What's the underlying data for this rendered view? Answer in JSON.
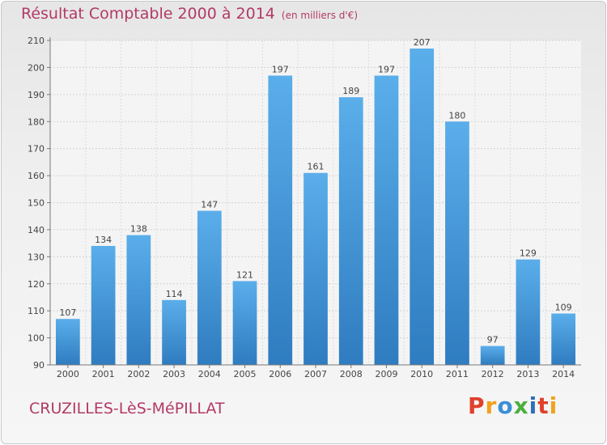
{
  "title": "Résultat Comptable 2000 à 2014",
  "unit": "(en milliers d'€)",
  "place": "CRUZILLES-LèS-MéPILLAT",
  "brand": {
    "letters": [
      "P",
      "r",
      "o",
      "x",
      "i",
      "t",
      "i"
    ],
    "colors": [
      "#e0412b",
      "#f2a21b",
      "#3a8fd6",
      "#4caf3e",
      "#2f6fb7",
      "#e0412b",
      "#f2a21b"
    ]
  },
  "colors": {
    "bar": "#4b9ee0",
    "title": "#b23a66",
    "axis": "#555555"
  },
  "chart_data": {
    "type": "bar",
    "categories": [
      "2000",
      "2001",
      "2002",
      "2003",
      "2004",
      "2005",
      "2006",
      "2007",
      "2008",
      "2009",
      "2010",
      "2011",
      "2012",
      "2013",
      "2014"
    ],
    "values": [
      107,
      134,
      138,
      114,
      147,
      121,
      197,
      161,
      189,
      197,
      207,
      180,
      97,
      129,
      109
    ],
    "ylim": [
      90,
      210
    ],
    "yticks": [
      90,
      100,
      110,
      120,
      130,
      140,
      150,
      160,
      170,
      180,
      190,
      200,
      210
    ],
    "grid": true
  }
}
